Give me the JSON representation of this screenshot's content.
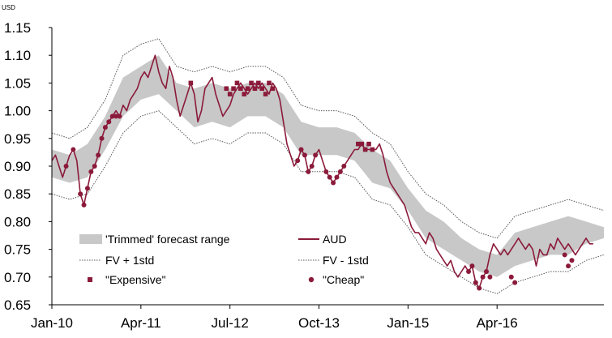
{
  "chart_data": {
    "type": "line",
    "unit_label": "USD",
    "ylim": [
      0.65,
      1.15
    ],
    "xlim": [
      2010.0,
      2017.75
    ],
    "y_ticks": [
      {
        "value": 0.65,
        "label": "0.65"
      },
      {
        "value": 0.7,
        "label": "0.70"
      },
      {
        "value": 0.75,
        "label": "0.75"
      },
      {
        "value": 0.8,
        "label": "0.80"
      },
      {
        "value": 0.85,
        "label": "0.85"
      },
      {
        "value": 0.9,
        "label": "0.90"
      },
      {
        "value": 0.95,
        "label": "0.95"
      },
      {
        "value": 1.0,
        "label": "1.00"
      },
      {
        "value": 1.05,
        "label": "1.05"
      },
      {
        "value": 1.1,
        "label": "1.10"
      },
      {
        "value": 1.15,
        "label": "1.15"
      }
    ],
    "x_ticks": [
      {
        "value": 2010.0,
        "label": "Jan-10"
      },
      {
        "value": 2011.25,
        "label": "Apr-11"
      },
      {
        "value": 2012.5,
        "label": "Jul-12"
      },
      {
        "value": 2013.75,
        "label": "Oct-13"
      },
      {
        "value": 2015.0,
        "label": "Jan-15"
      },
      {
        "value": 2016.25,
        "label": "Apr-16"
      }
    ],
    "legend": [
      {
        "key": "range",
        "label": "'Trimmed' forecast range"
      },
      {
        "key": "aud",
        "label": "AUD"
      },
      {
        "key": "fv_plus",
        "label": "FV + 1std"
      },
      {
        "key": "fv_minus",
        "label": "FV - 1std"
      },
      {
        "key": "expensive",
        "label": "\"Expensive\""
      },
      {
        "key": "cheap",
        "label": "\"Cheap\""
      }
    ],
    "colors": {
      "aud": "#8b1a3a",
      "range": "#c8c8c8",
      "fv_band": "#555555",
      "markers": "#8b1a3a",
      "axis": "#000000"
    },
    "series": [
      {
        "name": "AUD",
        "x": [
          2010.0,
          2010.05,
          2010.1,
          2010.15,
          2010.2,
          2010.25,
          2010.3,
          2010.35,
          2010.4,
          2010.45,
          2010.5,
          2010.55,
          2010.6,
          2010.65,
          2010.7,
          2010.75,
          2010.8,
          2010.85,
          2010.9,
          2010.95,
          2011.0,
          2011.05,
          2011.1,
          2011.15,
          2011.2,
          2011.25,
          2011.3,
          2011.35,
          2011.4,
          2011.45,
          2011.5,
          2011.55,
          2011.6,
          2011.65,
          2011.7,
          2011.75,
          2011.8,
          2011.85,
          2011.9,
          2011.95,
          2012.0,
          2012.05,
          2012.1,
          2012.15,
          2012.2,
          2012.25,
          2012.3,
          2012.35,
          2012.4,
          2012.45,
          2012.5,
          2012.55,
          2012.6,
          2012.65,
          2012.7,
          2012.75,
          2012.8,
          2012.85,
          2012.9,
          2012.95,
          2013.0,
          2013.05,
          2013.1,
          2013.15,
          2013.2,
          2013.25,
          2013.3,
          2013.35,
          2013.4,
          2013.45,
          2013.5,
          2013.55,
          2013.6,
          2013.65,
          2013.7,
          2013.75,
          2013.8,
          2013.85,
          2013.9,
          2013.95,
          2014.0,
          2014.05,
          2014.1,
          2014.15,
          2014.2,
          2014.25,
          2014.3,
          2014.35,
          2014.4,
          2014.45,
          2014.5,
          2014.55,
          2014.6,
          2014.65,
          2014.7,
          2014.75,
          2014.8,
          2014.85,
          2014.9,
          2014.95,
          2015.0,
          2015.05,
          2015.1,
          2015.15,
          2015.2,
          2015.25,
          2015.3,
          2015.35,
          2015.4,
          2015.45,
          2015.5,
          2015.55,
          2015.6,
          2015.65,
          2015.7,
          2015.75,
          2015.8,
          2015.85,
          2015.9,
          2015.95,
          2016.0,
          2016.05,
          2016.1,
          2016.15,
          2016.2,
          2016.25,
          2016.3,
          2016.35,
          2016.4,
          2016.45,
          2016.5,
          2016.55,
          2016.6,
          2016.65,
          2016.7,
          2016.75,
          2016.8,
          2016.85,
          2016.9,
          2016.95,
          2017.0,
          2017.05,
          2017.1,
          2017.15,
          2017.2,
          2017.25,
          2017.3,
          2017.35,
          2017.4,
          2017.45,
          2017.5,
          2017.55,
          2017.6
        ],
        "y": [
          0.91,
          0.92,
          0.9,
          0.88,
          0.9,
          0.92,
          0.93,
          0.91,
          0.85,
          0.83,
          0.86,
          0.89,
          0.9,
          0.92,
          0.95,
          0.97,
          0.98,
          0.99,
          1.0,
          0.99,
          1.01,
          1.0,
          1.02,
          1.03,
          1.04,
          1.06,
          1.07,
          1.06,
          1.08,
          1.1,
          1.07,
          1.05,
          1.04,
          1.08,
          1.06,
          1.02,
          0.99,
          1.01,
          1.03,
          1.05,
          1.03,
          0.98,
          1.0,
          1.04,
          1.05,
          1.06,
          1.03,
          1.01,
          0.99,
          1.0,
          1.01,
          1.03,
          1.04,
          1.05,
          1.04,
          1.03,
          1.04,
          1.05,
          1.04,
          1.05,
          1.04,
          1.03,
          1.05,
          1.04,
          1.02,
          0.98,
          0.94,
          0.92,
          0.9,
          0.91,
          0.93,
          0.92,
          0.89,
          0.9,
          0.92,
          0.93,
          0.91,
          0.89,
          0.88,
          0.87,
          0.88,
          0.89,
          0.9,
          0.91,
          0.92,
          0.93,
          0.93,
          0.94,
          0.93,
          0.93,
          0.93,
          0.93,
          0.94,
          0.92,
          0.89,
          0.87,
          0.86,
          0.85,
          0.84,
          0.83,
          0.81,
          0.79,
          0.78,
          0.78,
          0.77,
          0.76,
          0.78,
          0.77,
          0.75,
          0.74,
          0.73,
          0.72,
          0.73,
          0.71,
          0.7,
          0.71,
          0.72,
          0.71,
          0.72,
          0.69,
          0.68,
          0.7,
          0.71,
          0.74,
          0.76,
          0.75,
          0.74,
          0.75,
          0.74,
          0.75,
          0.76,
          0.77,
          0.76,
          0.75,
          0.76,
          0.75,
          0.72,
          0.75,
          0.74,
          0.74,
          0.76,
          0.75,
          0.77,
          0.76,
          0.75,
          0.76,
          0.75,
          0.74,
          0.75,
          0.76,
          0.77,
          0.76,
          0.76
        ]
      },
      {
        "name": "'Trimmed' forecast range",
        "x": [
          2010.0,
          2010.25,
          2010.5,
          2010.75,
          2011.0,
          2011.25,
          2011.5,
          2011.75,
          2012.0,
          2012.25,
          2012.5,
          2012.75,
          2013.0,
          2013.25,
          2013.5,
          2013.75,
          2014.0,
          2014.25,
          2014.5,
          2014.75,
          2015.0,
          2015.25,
          2015.5,
          2015.75,
          2016.0,
          2016.25,
          2016.5,
          2016.75,
          2017.0,
          2017.25,
          2017.5,
          2017.75
        ],
        "low": [
          0.88,
          0.87,
          0.88,
          0.93,
          0.99,
          1.02,
          1.03,
          1.0,
          0.97,
          0.98,
          0.97,
          0.99,
          0.99,
          0.97,
          0.92,
          0.92,
          0.92,
          0.91,
          0.87,
          0.86,
          0.82,
          0.77,
          0.75,
          0.73,
          0.71,
          0.7,
          0.72,
          0.73,
          0.74,
          0.74,
          0.76,
          0.77
        ],
        "high": [
          0.93,
          0.92,
          0.94,
          0.99,
          1.06,
          1.08,
          1.1,
          1.05,
          1.04,
          1.05,
          1.04,
          1.05,
          1.05,
          1.03,
          0.98,
          0.97,
          0.97,
          0.96,
          0.93,
          0.91,
          0.86,
          0.82,
          0.8,
          0.77,
          0.75,
          0.74,
          0.78,
          0.79,
          0.8,
          0.81,
          0.8,
          0.79
        ]
      },
      {
        "name": "FV + 1std",
        "x": [
          2010.0,
          2010.25,
          2010.5,
          2010.75,
          2011.0,
          2011.25,
          2011.5,
          2011.75,
          2012.0,
          2012.25,
          2012.5,
          2012.75,
          2013.0,
          2013.25,
          2013.5,
          2013.75,
          2014.0,
          2014.25,
          2014.5,
          2014.75,
          2015.0,
          2015.25,
          2015.5,
          2015.75,
          2016.0,
          2016.25,
          2016.5,
          2016.75,
          2017.0,
          2017.25,
          2017.5,
          2017.75
        ],
        "y": [
          0.96,
          0.95,
          0.97,
          1.02,
          1.1,
          1.12,
          1.13,
          1.08,
          1.07,
          1.08,
          1.07,
          1.08,
          1.08,
          1.06,
          1.01,
          1.0,
          1.0,
          0.99,
          0.96,
          0.94,
          0.89,
          0.85,
          0.83,
          0.8,
          0.78,
          0.77,
          0.81,
          0.82,
          0.83,
          0.84,
          0.83,
          0.82
        ]
      },
      {
        "name": "FV - 1std",
        "x": [
          2010.0,
          2010.25,
          2010.5,
          2010.75,
          2011.0,
          2011.25,
          2011.5,
          2011.75,
          2012.0,
          2012.25,
          2012.5,
          2012.75,
          2013.0,
          2013.25,
          2013.5,
          2013.75,
          2014.0,
          2014.25,
          2014.5,
          2014.75,
          2015.0,
          2015.25,
          2015.5,
          2015.75,
          2016.0,
          2016.25,
          2016.5,
          2016.75,
          2017.0,
          2017.25,
          2017.5,
          2017.75
        ],
        "y": [
          0.85,
          0.84,
          0.85,
          0.9,
          0.96,
          0.99,
          1.0,
          0.97,
          0.94,
          0.95,
          0.94,
          0.96,
          0.96,
          0.94,
          0.89,
          0.89,
          0.89,
          0.88,
          0.84,
          0.83,
          0.79,
          0.74,
          0.72,
          0.7,
          0.68,
          0.67,
          0.69,
          0.7,
          0.71,
          0.71,
          0.73,
          0.74
        ]
      },
      {
        "name": "\"Expensive\"",
        "x": [
          2011.95,
          2012.45,
          2012.5,
          2012.55,
          2012.6,
          2012.65,
          2012.7,
          2012.75,
          2012.8,
          2012.85,
          2012.9,
          2012.95,
          2013.0,
          2013.05,
          2013.1,
          2014.3,
          2014.35,
          2014.4,
          2014.45,
          2014.5
        ],
        "y": [
          1.05,
          1.04,
          1.03,
          1.04,
          1.05,
          1.04,
          1.03,
          1.04,
          1.05,
          1.04,
          1.05,
          1.04,
          1.03,
          1.05,
          1.04,
          0.94,
          0.94,
          0.93,
          0.94,
          0.93
        ]
      },
      {
        "name": "\"Cheap\"",
        "x": [
          2010.2,
          2010.3,
          2010.4,
          2010.45,
          2010.5,
          2010.55,
          2010.6,
          2010.65,
          2010.7,
          2010.75,
          2010.8,
          2010.85,
          2010.9,
          2010.95,
          2013.45,
          2013.5,
          2013.55,
          2013.6,
          2013.65,
          2013.7,
          2013.85,
          2013.9,
          2013.95,
          2014.0,
          2014.05,
          2014.1,
          2015.85,
          2015.9,
          2015.95,
          2016.0,
          2016.05,
          2016.1,
          2016.15,
          2016.45,
          2016.5,
          2017.2,
          2017.25,
          2017.3
        ],
        "y": [
          0.9,
          0.93,
          0.85,
          0.83,
          0.86,
          0.89,
          0.9,
          0.92,
          0.95,
          0.97,
          0.98,
          0.99,
          0.99,
          0.99,
          0.91,
          0.93,
          0.92,
          0.89,
          0.9,
          0.92,
          0.89,
          0.88,
          0.87,
          0.88,
          0.89,
          0.9,
          0.71,
          0.72,
          0.69,
          0.68,
          0.7,
          0.71,
          0.7,
          0.7,
          0.69,
          0.74,
          0.72,
          0.73
        ]
      }
    ]
  }
}
